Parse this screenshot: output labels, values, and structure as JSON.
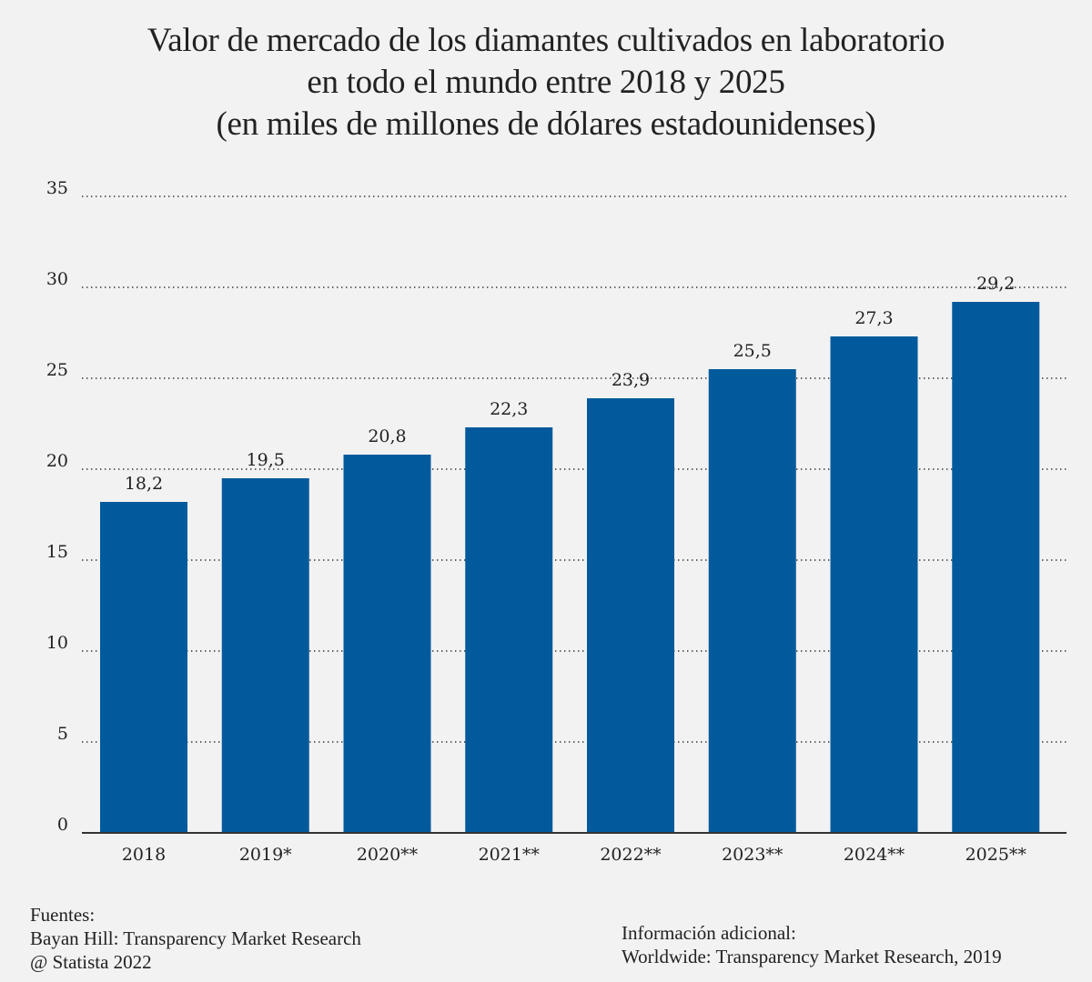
{
  "chart_data": {
    "type": "bar",
    "title": [
      "Valor de mercado de los diamantes cultivados en laboratorio",
      "en todo el mundo entre 2018 y 2025",
      "(en miles de millones de dólares estadounidenses)"
    ],
    "xlabel": "",
    "ylabel": "",
    "categories": [
      "2018",
      "2019*",
      "2020**",
      "2021**",
      "2022**",
      "2023**",
      "2024**",
      "2025**"
    ],
    "values": [
      18.2,
      19.5,
      20.8,
      22.3,
      23.9,
      25.5,
      27.3,
      29.2
    ],
    "value_labels": [
      "18,2",
      "19,5",
      "20,8",
      "22,3",
      "23,9",
      "25,5",
      "27,3",
      "29,2"
    ],
    "ylim": [
      0,
      35
    ],
    "yticks": [
      0,
      5,
      10,
      15,
      20,
      25,
      30,
      35
    ],
    "grid": "dotted-horizontal",
    "legend": "none",
    "bar_color": "#005a9c"
  },
  "footer": {
    "sources_heading": "Fuentes:",
    "sources_line": "Bayan Hill: Transparency Market Research",
    "copyright": "@ Statista 2022",
    "info_heading": "Información adicional:",
    "info_line": "Worldwide: Transparency Market Research, 2019"
  }
}
